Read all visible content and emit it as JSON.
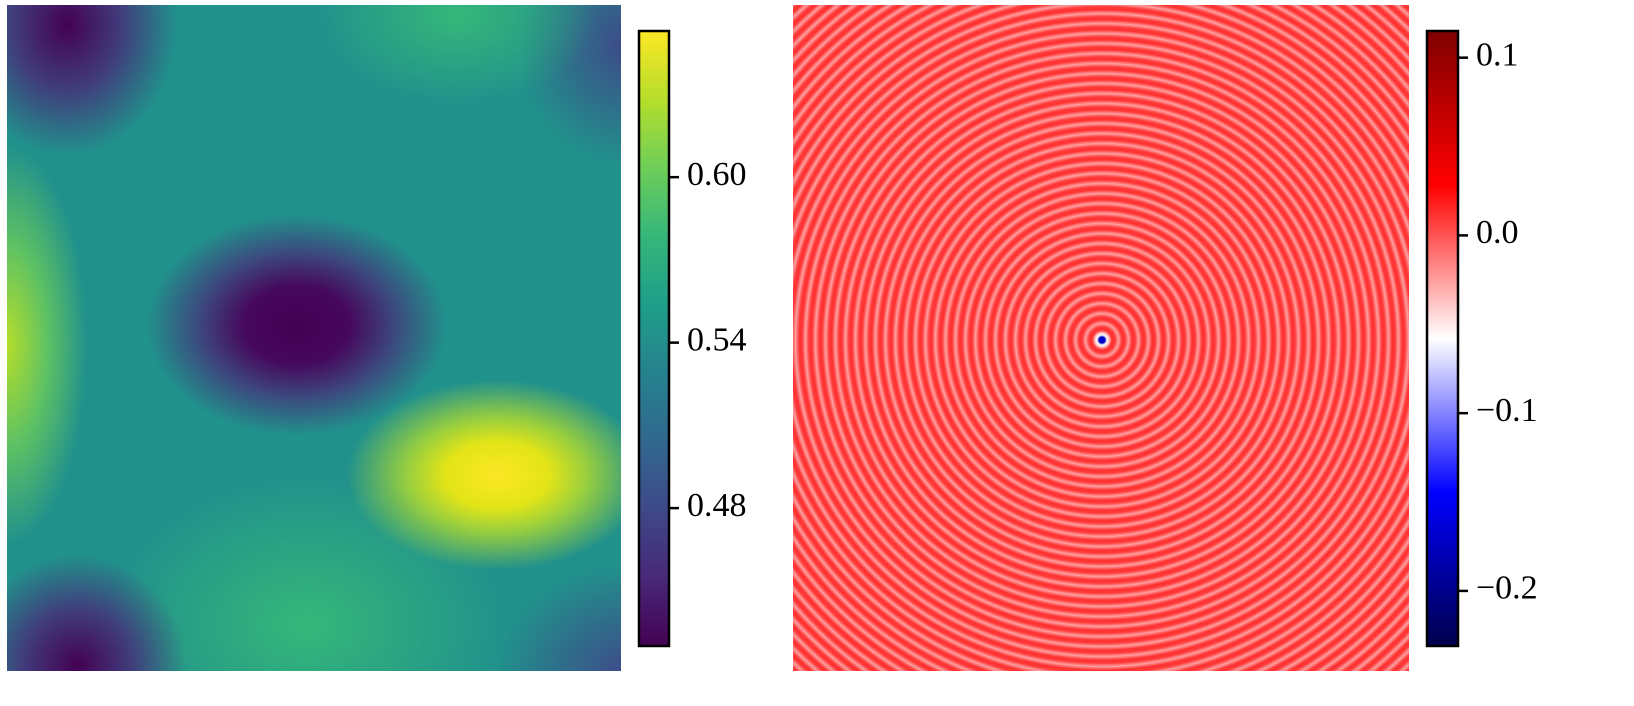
{
  "chart_data": [
    {
      "type": "heatmap",
      "colormap": [
        "#440154",
        "#482878",
        "#3e4989",
        "#31688e",
        "#26828e",
        "#1f9e89",
        "#35b779",
        "#6ece58",
        "#b5de2b",
        "#fde725"
      ],
      "ylim": [
        0.43,
        0.653
      ],
      "yticks": [
        {
          "value": 0.48,
          "label": "0.48"
        },
        {
          "value": 0.54,
          "label": "0.54"
        },
        {
          "value": 0.6,
          "label": "0.60"
        }
      ]
    },
    {
      "type": "heatmap",
      "colormap": [
        "#00004c",
        "#0000ff",
        "#ffffff",
        "#ff0000",
        "#7f0000"
      ],
      "ylim": [
        -0.231,
        0.115
      ],
      "yticks": [
        {
          "value": -0.2,
          "label": "−0.2"
        },
        {
          "value": -0.1,
          "label": "−0.1"
        },
        {
          "value": 0,
          "label": "0.0"
        },
        0.1
      ]
    }
  ]
}
